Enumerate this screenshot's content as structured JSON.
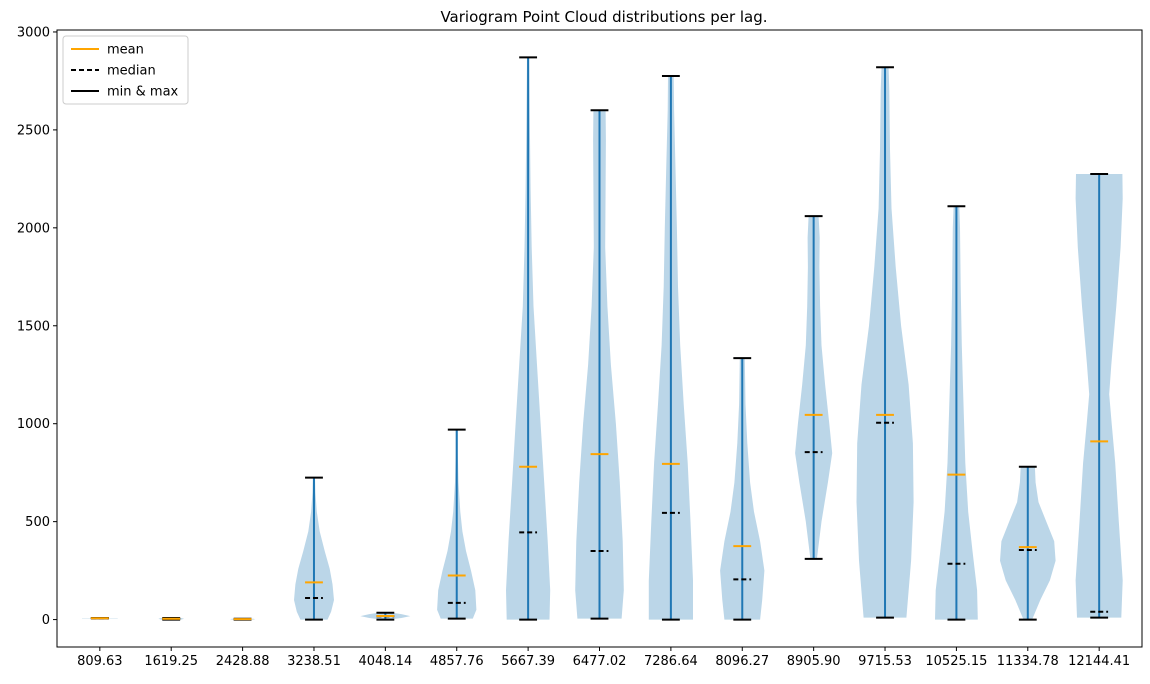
{
  "chart_data": {
    "type": "violin",
    "title": "Variogram Point Cloud distributions per lag.",
    "xlabel": "",
    "ylabel": "",
    "ylim": [
      -140,
      3010
    ],
    "yticks": [
      0,
      500,
      1000,
      1500,
      2000,
      2500,
      3000
    ],
    "legend": {
      "placement": "top-left",
      "entries": [
        {
          "label": "mean",
          "style": "solid",
          "color": "#ffa500"
        },
        {
          "label": "median",
          "style": "dashed",
          "color": "#000000"
        },
        {
          "label": "min & max",
          "style": "solid",
          "color": "#000000"
        }
      ]
    },
    "colors": {
      "body": "#1f77b4",
      "body_alpha": 0.3,
      "bar": "#1f77b4",
      "mean": "#ffa500",
      "cap": "#000000"
    },
    "categories": [
      "809.63",
      "1619.25",
      "2428.88",
      "3238.51",
      "4048.14",
      "4857.76",
      "5667.39",
      "6477.02",
      "7286.64",
      "8096.27",
      "8905.90",
      "9715.53",
      "10525.15",
      "11334.78",
      "12144.41"
    ],
    "violins": [
      {
        "label": "809.63",
        "min": 6,
        "max": 8,
        "mean": 7,
        "median": 7,
        "profile": [
          [
            6,
            0.5
          ],
          [
            8,
            0.5
          ]
        ]
      },
      {
        "label": "1619.25",
        "min": 0,
        "max": 8,
        "mean": 4,
        "median": 4,
        "profile": [
          [
            0,
            0.28
          ],
          [
            4,
            0.36
          ],
          [
            8,
            0.28
          ]
        ]
      },
      {
        "label": "2428.88",
        "min": 0,
        "max": 4,
        "mean": 2,
        "median": 2,
        "profile": [
          [
            0,
            0.3
          ],
          [
            2,
            0.35
          ],
          [
            4,
            0.3
          ]
        ]
      },
      {
        "label": "3238.51",
        "min": 0,
        "max": 725,
        "mean": 190,
        "median": 110,
        "profile": [
          [
            0,
            0.38
          ],
          [
            40,
            0.48
          ],
          [
            100,
            0.56
          ],
          [
            180,
            0.52
          ],
          [
            260,
            0.44
          ],
          [
            350,
            0.3
          ],
          [
            450,
            0.16
          ],
          [
            550,
            0.08
          ],
          [
            650,
            0.04
          ],
          [
            725,
            0.03
          ]
        ]
      },
      {
        "label": "4048.14",
        "min": 0,
        "max": 35,
        "mean": 18,
        "median": 17,
        "profile": [
          [
            0,
            0.1
          ],
          [
            8,
            0.45
          ],
          [
            18,
            0.7
          ],
          [
            28,
            0.45
          ],
          [
            35,
            0.2
          ]
        ]
      },
      {
        "label": "4857.76",
        "min": 5,
        "max": 970,
        "mean": 225,
        "median": 85,
        "profile": [
          [
            5,
            0.45
          ],
          [
            50,
            0.55
          ],
          [
            150,
            0.52
          ],
          [
            250,
            0.4
          ],
          [
            350,
            0.26
          ],
          [
            450,
            0.16
          ],
          [
            550,
            0.1
          ],
          [
            700,
            0.05
          ],
          [
            850,
            0.03
          ],
          [
            970,
            0.03
          ]
        ]
      },
      {
        "label": "5667.39",
        "min": 0,
        "max": 2870,
        "mean": 780,
        "median": 445,
        "profile": [
          [
            0,
            0.6
          ],
          [
            150,
            0.62
          ],
          [
            400,
            0.55
          ],
          [
            700,
            0.45
          ],
          [
            1000,
            0.35
          ],
          [
            1300,
            0.25
          ],
          [
            1600,
            0.15
          ],
          [
            1900,
            0.1
          ],
          [
            2200,
            0.07
          ],
          [
            2500,
            0.05
          ],
          [
            2870,
            0.03
          ]
        ]
      },
      {
        "label": "6477.02",
        "min": 5,
        "max": 2600,
        "mean": 845,
        "median": 350,
        "profile": [
          [
            5,
            0.62
          ],
          [
            150,
            0.68
          ],
          [
            400,
            0.65
          ],
          [
            700,
            0.57
          ],
          [
            1000,
            0.46
          ],
          [
            1300,
            0.32
          ],
          [
            1600,
            0.22
          ],
          [
            1900,
            0.16
          ],
          [
            2200,
            0.17
          ],
          [
            2450,
            0.18
          ],
          [
            2600,
            0.17
          ]
        ]
      },
      {
        "label": "7286.64",
        "min": 0,
        "max": 2775,
        "mean": 795,
        "median": 545,
        "profile": [
          [
            0,
            0.62
          ],
          [
            200,
            0.62
          ],
          [
            500,
            0.55
          ],
          [
            800,
            0.47
          ],
          [
            1100,
            0.36
          ],
          [
            1400,
            0.26
          ],
          [
            1700,
            0.2
          ],
          [
            2000,
            0.17
          ],
          [
            2300,
            0.13
          ],
          [
            2600,
            0.09
          ],
          [
            2775,
            0.08
          ]
        ]
      },
      {
        "label": "8096.27",
        "min": 0,
        "max": 1335,
        "mean": 375,
        "median": 205,
        "profile": [
          [
            0,
            0.5
          ],
          [
            100,
            0.56
          ],
          [
            250,
            0.62
          ],
          [
            400,
            0.5
          ],
          [
            550,
            0.33
          ],
          [
            700,
            0.22
          ],
          [
            900,
            0.14
          ],
          [
            1100,
            0.09
          ],
          [
            1335,
            0.07
          ]
        ]
      },
      {
        "label": "8905.90",
        "min": 310,
        "max": 2060,
        "mean": 1045,
        "median": 855,
        "profile": [
          [
            310,
            0.09
          ],
          [
            500,
            0.22
          ],
          [
            700,
            0.4
          ],
          [
            850,
            0.52
          ],
          [
            1000,
            0.44
          ],
          [
            1200,
            0.32
          ],
          [
            1400,
            0.22
          ],
          [
            1600,
            0.18
          ],
          [
            1800,
            0.16
          ],
          [
            1950,
            0.17
          ],
          [
            2060,
            0.14
          ]
        ]
      },
      {
        "label": "9715.53",
        "min": 10,
        "max": 2820,
        "mean": 1045,
        "median": 1005,
        "profile": [
          [
            10,
            0.6
          ],
          [
            300,
            0.73
          ],
          [
            600,
            0.8
          ],
          [
            900,
            0.78
          ],
          [
            1200,
            0.66
          ],
          [
            1500,
            0.45
          ],
          [
            1800,
            0.3
          ],
          [
            2100,
            0.18
          ],
          [
            2400,
            0.14
          ],
          [
            2700,
            0.12
          ],
          [
            2820,
            0.1
          ]
        ]
      },
      {
        "label": "10525.15",
        "min": 0,
        "max": 2110,
        "mean": 740,
        "median": 285,
        "profile": [
          [
            0,
            0.6
          ],
          [
            150,
            0.58
          ],
          [
            350,
            0.45
          ],
          [
            550,
            0.33
          ],
          [
            800,
            0.25
          ],
          [
            1100,
            0.2
          ],
          [
            1400,
            0.15
          ],
          [
            1700,
            0.12
          ],
          [
            2000,
            0.1
          ],
          [
            2110,
            0.08
          ]
        ]
      },
      {
        "label": "11334.78",
        "min": 0,
        "max": 780,
        "mean": 370,
        "median": 355,
        "profile": [
          [
            0,
            0.12
          ],
          [
            100,
            0.35
          ],
          [
            200,
            0.62
          ],
          [
            300,
            0.78
          ],
          [
            400,
            0.74
          ],
          [
            500,
            0.52
          ],
          [
            600,
            0.3
          ],
          [
            700,
            0.22
          ],
          [
            780,
            0.2
          ]
        ]
      },
      {
        "label": "12144.41",
        "min": 10,
        "max": 2275,
        "mean": 910,
        "median": 40,
        "profile": [
          [
            10,
            0.62
          ],
          [
            200,
            0.66
          ],
          [
            500,
            0.55
          ],
          [
            800,
            0.45
          ],
          [
            1000,
            0.35
          ],
          [
            1150,
            0.28
          ],
          [
            1300,
            0.34
          ],
          [
            1600,
            0.48
          ],
          [
            1900,
            0.6
          ],
          [
            2150,
            0.66
          ],
          [
            2275,
            0.65
          ]
        ]
      }
    ]
  }
}
